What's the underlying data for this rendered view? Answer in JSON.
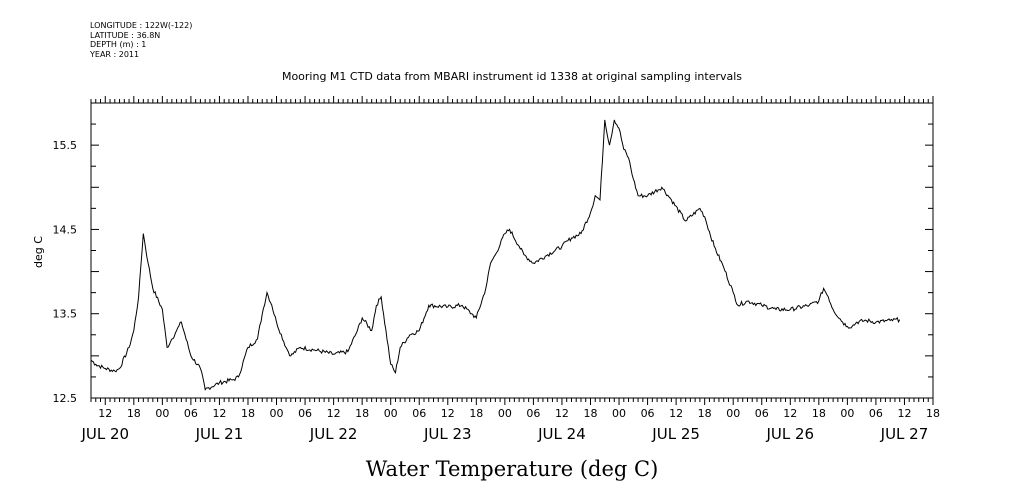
{
  "header": {
    "lines": [
      "LONGITUDE : 122W(-122)",
      "LATITUDE : 36.8N",
      "DEPTH (m) : 1",
      "YEAR : 2011"
    ]
  },
  "chart_data": {
    "type": "line",
    "title": "Mooring M1 CTD data from MBARI instrument id 1338 at original sampling intervals",
    "xlabel": "Water Temperature (deg C)",
    "ylabel": "deg C",
    "ylim": [
      12.5,
      16.0
    ],
    "yticks": [
      12.5,
      13.5,
      14.5,
      15.5
    ],
    "xlim": [
      "2011-07-20T09:00",
      "2011-07-27T18:00"
    ],
    "hour_tick_labels": [
      "12",
      "18",
      "00",
      "06"
    ],
    "day_labels": [
      {
        "date": "2011-07-20",
        "label": "JUL 20"
      },
      {
        "date": "2011-07-21",
        "label": "JUL 21"
      },
      {
        "date": "2011-07-22",
        "label": "JUL 22"
      },
      {
        "date": "2011-07-23",
        "label": "JUL 23"
      },
      {
        "date": "2011-07-24",
        "label": "JUL 24"
      },
      {
        "date": "2011-07-25",
        "label": "JUL 25"
      },
      {
        "date": "2011-07-26",
        "label": "JUL 26"
      },
      {
        "date": "2011-07-27",
        "label": "JUL 27"
      }
    ],
    "series": [
      {
        "x": [
          "2011-07-20T09:00",
          "2011-07-20T10:00",
          "2011-07-20T12:00",
          "2011-07-20T14:00",
          "2011-07-20T15:00",
          "2011-07-20T17:00",
          "2011-07-20T18:00",
          "2011-07-20T19:00",
          "2011-07-20T20:00",
          "2011-07-20T21:00",
          "2011-07-20T22:00",
          "2011-07-21T00:00",
          "2011-07-21T01:00",
          "2011-07-21T02:00",
          "2011-07-21T03:00",
          "2011-07-21T04:00",
          "2011-07-21T06:00",
          "2011-07-21T08:00",
          "2011-07-21T09:00",
          "2011-07-21T12:00",
          "2011-07-21T15:00",
          "2011-07-21T16:00",
          "2011-07-21T18:00",
          "2011-07-21T20:00",
          "2011-07-21T21:00",
          "2011-07-21T22:00",
          "2011-07-21T23:00",
          "2011-07-22T00:00",
          "2011-07-22T02:00",
          "2011-07-22T03:00",
          "2011-07-22T05:00",
          "2011-07-22T08:00",
          "2011-07-22T12:00",
          "2011-07-22T15:00",
          "2011-07-22T17:00",
          "2011-07-22T18:00",
          "2011-07-22T20:00",
          "2011-07-22T21:00",
          "2011-07-22T22:00",
          "2011-07-23T00:00",
          "2011-07-23T01:00",
          "2011-07-23T02:00",
          "2011-07-23T04:00",
          "2011-07-23T06:00",
          "2011-07-23T08:00",
          "2011-07-23T12:00",
          "2011-07-23T15:00",
          "2011-07-23T17:00",
          "2011-07-23T18:00",
          "2011-07-23T20:00",
          "2011-07-23T21:00",
          "2011-07-23T22:00",
          "2011-07-24T00:00",
          "2011-07-24T01:00",
          "2011-07-24T03:00",
          "2011-07-24T04:00",
          "2011-07-24T06:00",
          "2011-07-24T09:00",
          "2011-07-24T12:00",
          "2011-07-24T14:00",
          "2011-07-24T16:00",
          "2011-07-24T18:00",
          "2011-07-24T19:00",
          "2011-07-24T20:00",
          "2011-07-24T21:00",
          "2011-07-24T22:00",
          "2011-07-24T23:00",
          "2011-07-25T00:00",
          "2011-07-25T01:00",
          "2011-07-25T02:00",
          "2011-07-25T03:00",
          "2011-07-25T04:00",
          "2011-07-25T06:00",
          "2011-07-25T09:00",
          "2011-07-25T11:00",
          "2011-07-25T14:00",
          "2011-07-25T17:00",
          "2011-07-25T18:00",
          "2011-07-25T20:00",
          "2011-07-25T22:00",
          "2011-07-26T00:00",
          "2011-07-26T01:00",
          "2011-07-26T03:00",
          "2011-07-26T06:00",
          "2011-07-26T09:00",
          "2011-07-26T12:00",
          "2011-07-26T16:00",
          "2011-07-26T18:00",
          "2011-07-26T19:00",
          "2011-07-26T20:00",
          "2011-07-26T21:00",
          "2011-07-26T23:00",
          "2011-07-27T00:00",
          "2011-07-27T01:00",
          "2011-07-27T02:00",
          "2011-07-27T04:00",
          "2011-07-27T06:00",
          "2011-07-27T09:00",
          "2011-07-27T11:00"
        ],
        "y": [
          12.95,
          12.9,
          12.85,
          12.82,
          12.85,
          13.1,
          13.3,
          13.7,
          14.45,
          14.1,
          13.8,
          13.55,
          13.1,
          13.2,
          13.3,
          13.4,
          13.0,
          12.85,
          12.6,
          12.68,
          12.72,
          12.75,
          13.1,
          13.2,
          13.5,
          13.75,
          13.6,
          13.4,
          13.1,
          13.0,
          13.1,
          13.07,
          13.02,
          13.05,
          13.3,
          13.45,
          13.3,
          13.6,
          13.7,
          12.9,
          12.8,
          13.1,
          13.25,
          13.3,
          13.6,
          13.58,
          13.6,
          13.5,
          13.45,
          13.8,
          14.1,
          14.2,
          14.45,
          14.5,
          14.3,
          14.2,
          14.1,
          14.2,
          14.3,
          14.4,
          14.45,
          14.7,
          14.9,
          14.85,
          15.8,
          15.5,
          15.8,
          15.7,
          15.45,
          15.35,
          15.1,
          14.9,
          14.9,
          15.0,
          14.85,
          14.6,
          14.75,
          14.65,
          14.3,
          14.05,
          13.75,
          13.6,
          13.65,
          13.6,
          13.55,
          13.55,
          13.6,
          13.65,
          13.8,
          13.7,
          13.55,
          13.4,
          13.35,
          13.35,
          13.4,
          13.42,
          13.4,
          13.42,
          13.43
        ]
      }
    ]
  }
}
